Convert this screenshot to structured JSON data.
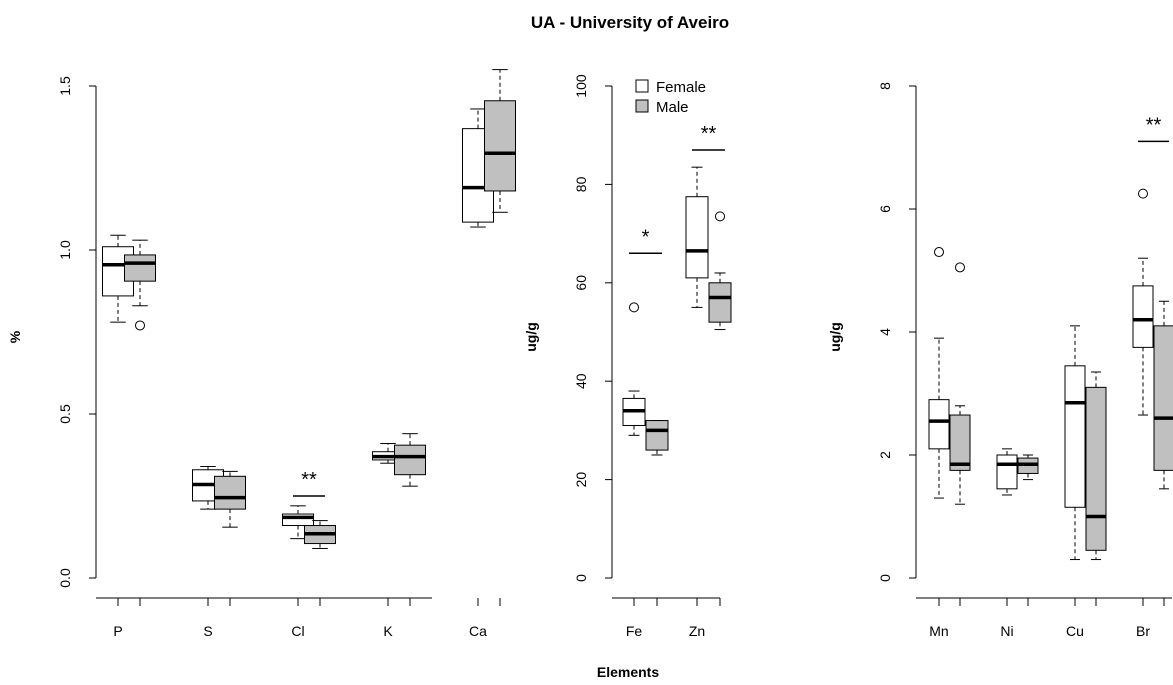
{
  "title": "UA - University of Aveiro",
  "xlabel": "Elements",
  "legend": {
    "female_label": "Female",
    "male_label": "Male"
  },
  "colors": {
    "female": "#ffffff",
    "male": "#c0c0c0",
    "stroke": "#000000"
  },
  "chart_data": [
    {
      "type": "boxplot",
      "ylabel": "%",
      "ylim": [
        0,
        1.5
      ],
      "yticks": [
        "0.0",
        "0.5",
        "1.0",
        "1.5"
      ],
      "categories": [
        "P",
        "S",
        "Cl",
        "K",
        "Ca"
      ],
      "series": [
        {
          "name": "Female",
          "boxes": [
            {
              "min": 0.78,
              "q1": 0.86,
              "median": 0.955,
              "q3": 1.01,
              "max": 1.045,
              "outliers": []
            },
            {
              "min": 0.21,
              "q1": 0.235,
              "median": 0.285,
              "q3": 0.33,
              "max": 0.34,
              "outliers": []
            },
            {
              "min": 0.12,
              "q1": 0.16,
              "median": 0.185,
              "q3": 0.195,
              "max": 0.22,
              "outliers": []
            },
            {
              "min": 0.35,
              "q1": 0.36,
              "median": 0.37,
              "q3": 0.385,
              "max": 0.41,
              "outliers": []
            },
            {
              "min": 1.07,
              "q1": 1.085,
              "median": 1.19,
              "q3": 1.37,
              "max": 1.43,
              "outliers": []
            }
          ]
        },
        {
          "name": "Male",
          "boxes": [
            {
              "min": 0.83,
              "q1": 0.905,
              "median": 0.96,
              "q3": 0.985,
              "max": 1.03,
              "outliers": [
                0.77
              ]
            },
            {
              "min": 0.155,
              "q1": 0.21,
              "median": 0.245,
              "q3": 0.31,
              "max": 0.325,
              "outliers": []
            },
            {
              "min": 0.09,
              "q1": 0.105,
              "median": 0.135,
              "q3": 0.16,
              "max": 0.175,
              "outliers": []
            },
            {
              "min": 0.28,
              "q1": 0.315,
              "median": 0.37,
              "q3": 0.405,
              "max": 0.44,
              "outliers": []
            },
            {
              "min": 1.115,
              "q1": 1.18,
              "median": 1.295,
              "q3": 1.455,
              "max": 1.55,
              "outliers": []
            }
          ]
        }
      ],
      "annotations": [
        {
          "category": "Cl",
          "label": "**",
          "y": 0.25
        }
      ]
    },
    {
      "type": "boxplot",
      "ylabel": "ug/g",
      "ylim": [
        0,
        100
      ],
      "yticks": [
        "0",
        "20",
        "40",
        "60",
        "80",
        "100"
      ],
      "categories": [
        "Fe",
        "Zn"
      ],
      "legend_position": "top-left",
      "series": [
        {
          "name": "Female",
          "boxes": [
            {
              "min": 29,
              "q1": 31,
              "median": 34,
              "q3": 36.5,
              "max": 38,
              "outliers": [
                55
              ]
            },
            {
              "min": 55,
              "q1": 61,
              "median": 66.5,
              "q3": 77.5,
              "max": 83.5,
              "outliers": []
            }
          ]
        },
        {
          "name": "Male",
          "boxes": [
            {
              "min": 25,
              "q1": 26,
              "median": 30,
              "q3": 32,
              "max": 32,
              "outliers": []
            },
            {
              "min": 50.5,
              "q1": 52,
              "median": 57,
              "q3": 60,
              "max": 62,
              "outliers": [
                73.5
              ]
            }
          ]
        }
      ],
      "annotations": [
        {
          "category": "Fe",
          "label": "*",
          "y": 66
        },
        {
          "category": "Zn",
          "label": "**",
          "y": 87
        }
      ]
    },
    {
      "type": "boxplot",
      "ylabel": "ug/g",
      "ylim": [
        0,
        8
      ],
      "yticks": [
        "0",
        "2",
        "4",
        "6",
        "8"
      ],
      "categories": [
        "Mn",
        "Ni",
        "Cu",
        "Br"
      ],
      "series": [
        {
          "name": "Female",
          "boxes": [
            {
              "min": 1.3,
              "q1": 2.1,
              "median": 2.55,
              "q3": 2.9,
              "max": 3.9,
              "outliers": [
                5.3
              ]
            },
            {
              "min": 1.35,
              "q1": 1.45,
              "median": 1.85,
              "q3": 2.0,
              "max": 2.1,
              "outliers": []
            },
            {
              "min": 0.3,
              "q1": 1.15,
              "median": 2.85,
              "q3": 3.45,
              "max": 4.1,
              "outliers": []
            },
            {
              "min": 2.65,
              "q1": 3.75,
              "median": 4.2,
              "q3": 4.75,
              "max": 5.2,
              "outliers": [
                6.25
              ]
            }
          ]
        },
        {
          "name": "Male",
          "boxes": [
            {
              "min": 1.2,
              "q1": 1.75,
              "median": 1.85,
              "q3": 2.65,
              "max": 2.8,
              "outliers": [
                5.05
              ]
            },
            {
              "min": 1.6,
              "q1": 1.7,
              "median": 1.85,
              "q3": 1.95,
              "max": 2.0,
              "outliers": []
            },
            {
              "min": 0.3,
              "q1": 0.45,
              "median": 1.0,
              "q3": 3.1,
              "max": 3.35,
              "outliers": []
            },
            {
              "min": 1.45,
              "q1": 1.75,
              "median": 2.6,
              "q3": 4.1,
              "max": 4.5,
              "outliers": []
            }
          ]
        }
      ],
      "annotations": [
        {
          "category": "Br",
          "label": "**",
          "y": 7.1
        }
      ]
    }
  ]
}
